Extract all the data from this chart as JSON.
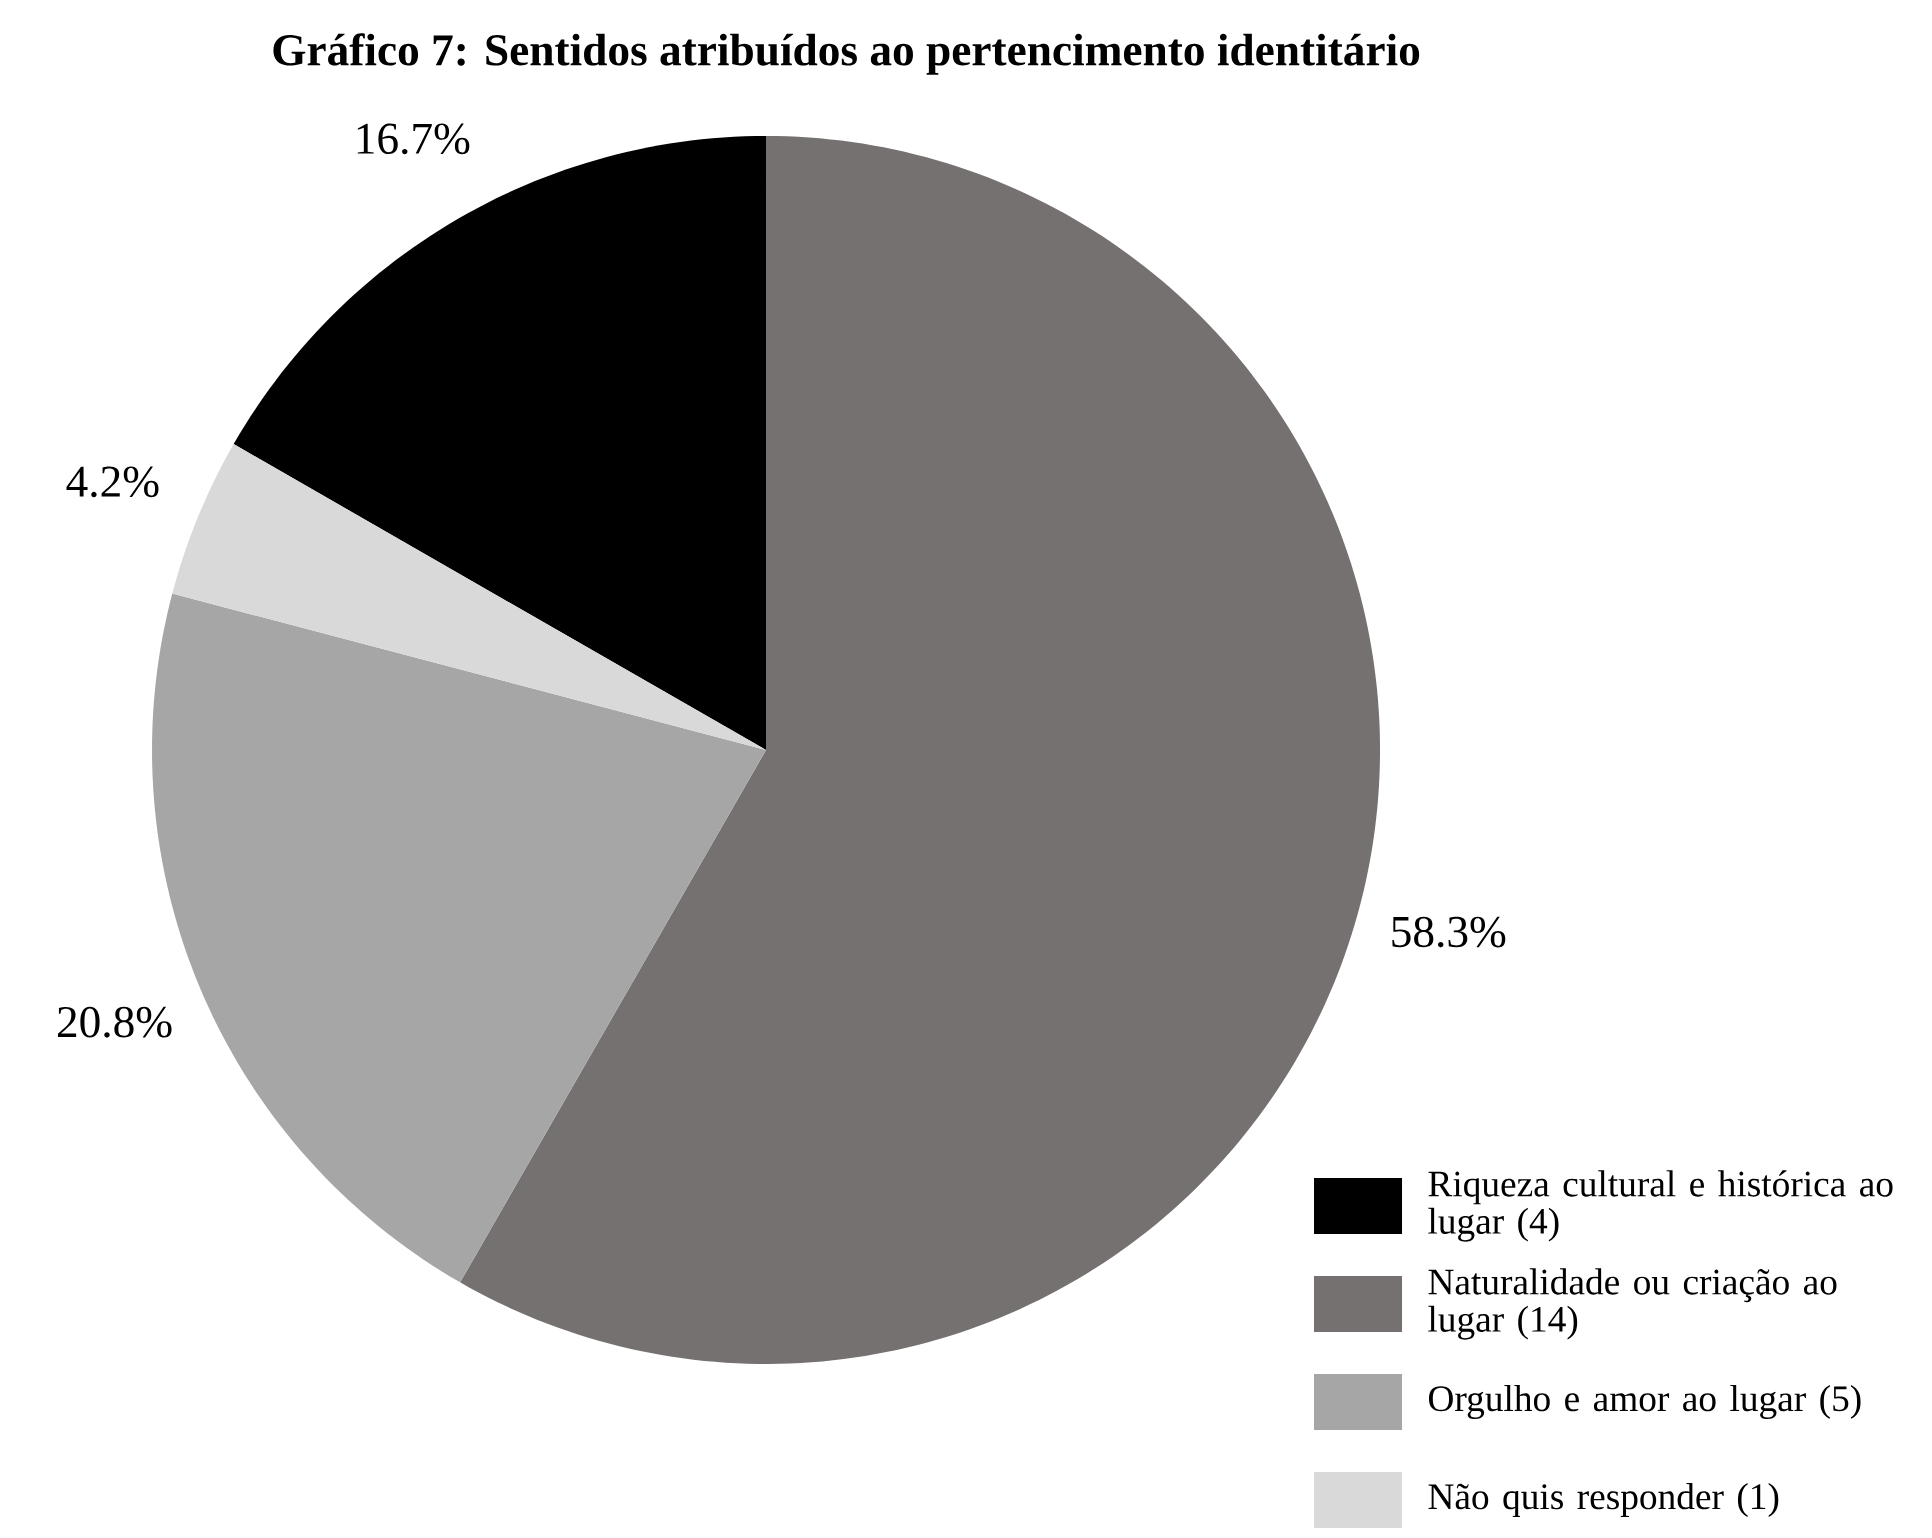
{
  "chart_data": {
    "type": "pie",
    "title": "Gráfico 7: Sentidos atribuídos ao pertencimento identitário",
    "categories": [
      "Riqueza cultural e histórica ao lugar (4)",
      "Naturalidade ou criação ao lugar (14)",
      "Orgulho e amor ao lugar (5)",
      "Não quis responder (1)"
    ],
    "values": [
      16.7,
      58.3,
      20.8,
      4.2
    ],
    "value_labels": [
      "16.7%",
      "58.3%",
      "20.8%",
      "4.2%"
    ],
    "colors": [
      "#000000",
      "#767171",
      "#a6a6a6",
      "#d9d9d9"
    ],
    "legend": "bottom right"
  }
}
